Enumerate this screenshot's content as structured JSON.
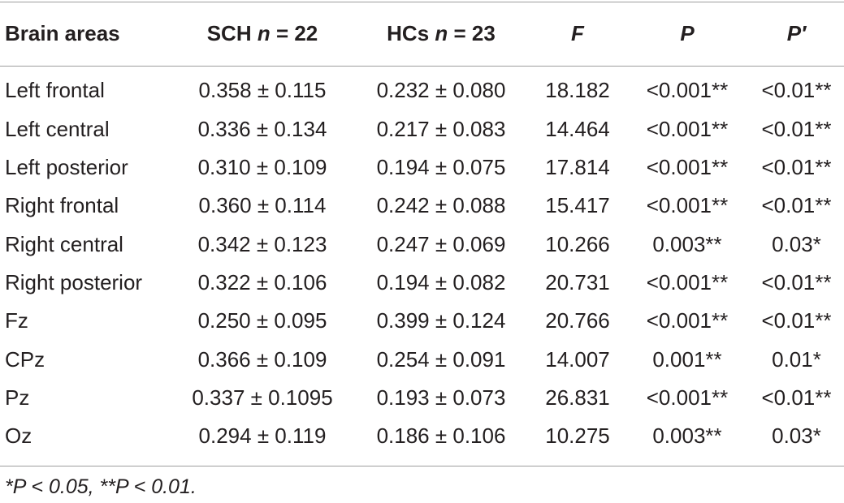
{
  "header": {
    "brain_areas": "Brain areas",
    "sch_prefix": "SCH ",
    "sch_n": "n",
    "sch_suffix": " = 22",
    "hcs_prefix": "HCs ",
    "hcs_n": "n",
    "hcs_suffix": " = 23",
    "f": "F",
    "p": "P",
    "p_prime": "P′"
  },
  "rows": [
    {
      "area": "Left frontal",
      "sch": "0.358 ± 0.115",
      "hcs": "0.232 ± 0.080",
      "f": "18.182",
      "p": "<0.001**",
      "p_prime": "<0.01**"
    },
    {
      "area": "Left central",
      "sch": "0.336 ± 0.134",
      "hcs": "0.217 ± 0.083",
      "f": "14.464",
      "p": "<0.001**",
      "p_prime": "<0.01**"
    },
    {
      "area": "Left posterior",
      "sch": "0.310 ± 0.109",
      "hcs": "0.194 ± 0.075",
      "f": "17.814",
      "p": "<0.001**",
      "p_prime": "<0.01**"
    },
    {
      "area": "Right frontal",
      "sch": "0.360 ± 0.114",
      "hcs": "0.242 ± 0.088",
      "f": "15.417",
      "p": "<0.001**",
      "p_prime": "<0.01**"
    },
    {
      "area": "Right central",
      "sch": "0.342 ± 0.123",
      "hcs": "0.247 ± 0.069",
      "f": "10.266",
      "p": "0.003**",
      "p_prime": "0.03*"
    },
    {
      "area": "Right posterior",
      "sch": "0.322 ± 0.106",
      "hcs": "0.194 ± 0.082",
      "f": "20.731",
      "p": "<0.001**",
      "p_prime": "<0.01**"
    },
    {
      "area": "Fz",
      "sch": "0.250 ± 0.095",
      "hcs": "0.399 ± 0.124",
      "f": "20.766",
      "p": "<0.001**",
      "p_prime": "<0.01**"
    },
    {
      "area": "CPz",
      "sch": "0.366 ± 0.109",
      "hcs": "0.254 ± 0.091",
      "f": "14.007",
      "p": "0.001**",
      "p_prime": "0.01*"
    },
    {
      "area": "Pz",
      "sch": "0.337 ± 0.1095",
      "hcs": "0.193 ± 0.073",
      "f": "26.831",
      "p": "<0.001**",
      "p_prime": "<0.01**"
    },
    {
      "area": "Oz",
      "sch": "0.294 ± 0.119",
      "hcs": "0.186 ± 0.106",
      "f": "10.275",
      "p": "0.003**",
      "p_prime": "0.03*"
    }
  ],
  "footnote": "*P < 0.05, **P < 0.01."
}
